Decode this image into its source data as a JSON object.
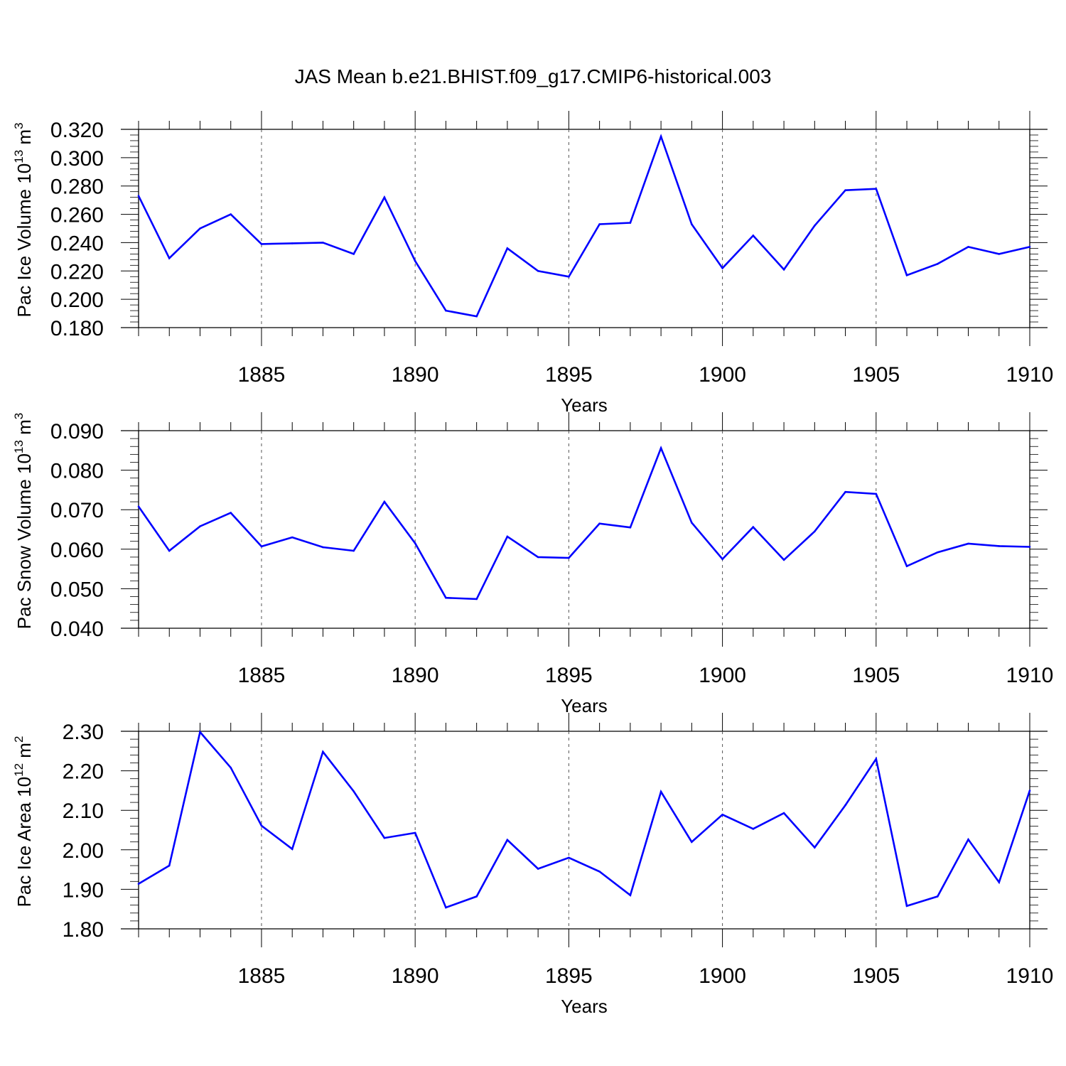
{
  "title": "JAS Mean b.e21.BHIST.f09_g17.CMIP6-historical.003",
  "line_color": "#0000ff",
  "chart_data": [
    {
      "type": "line",
      "xlabel": "Years",
      "ylabel": "Pac Ice Volume 10",
      "ylabel_exp": "13",
      "ylabel_unit": " m",
      "ylabel_unit_exp": "3",
      "xlim": [
        1881,
        1910
      ],
      "ylim": [
        0.18,
        0.32
      ],
      "xticks": [
        1885,
        1890,
        1895,
        1900,
        1905,
        1910
      ],
      "yticks": [
        "0.180",
        "0.200",
        "0.220",
        "0.240",
        "0.260",
        "0.280",
        "0.300",
        "0.320"
      ],
      "x": [
        1881,
        1882,
        1883,
        1884,
        1885,
        1886,
        1887,
        1888,
        1889,
        1890,
        1891,
        1892,
        1893,
        1894,
        1895,
        1896,
        1897,
        1898,
        1899,
        1900,
        1901,
        1902,
        1903,
        1904,
        1905,
        1906,
        1907,
        1908,
        1909,
        1910
      ],
      "values": [
        0.273,
        0.229,
        0.25,
        0.26,
        0.239,
        0.2395,
        0.24,
        0.232,
        0.272,
        0.227,
        0.192,
        0.188,
        0.236,
        0.22,
        0.216,
        0.253,
        0.254,
        0.315,
        0.253,
        0.222,
        0.245,
        0.221,
        0.252,
        0.277,
        0.278,
        0.217,
        0.225,
        0.237,
        0.232,
        0.237
      ]
    },
    {
      "type": "line",
      "xlabel": "Years",
      "ylabel": "Pac Snow Volume 10",
      "ylabel_exp": "13",
      "ylabel_unit": " m",
      "ylabel_unit_exp": "3",
      "xlim": [
        1881,
        1910
      ],
      "ylim": [
        0.04,
        0.09
      ],
      "xticks": [
        1885,
        1890,
        1895,
        1900,
        1905,
        1910
      ],
      "yticks": [
        "0.040",
        "0.050",
        "0.060",
        "0.070",
        "0.080",
        "0.090"
      ],
      "x": [
        1881,
        1882,
        1883,
        1884,
        1885,
        1886,
        1887,
        1888,
        1889,
        1890,
        1891,
        1892,
        1893,
        1894,
        1895,
        1896,
        1897,
        1898,
        1899,
        1900,
        1901,
        1902,
        1903,
        1904,
        1905,
        1906,
        1907,
        1908,
        1909,
        1910
      ],
      "values": [
        0.0708,
        0.0596,
        0.0658,
        0.0692,
        0.0607,
        0.063,
        0.0605,
        0.0596,
        0.072,
        0.0615,
        0.0477,
        0.0474,
        0.0632,
        0.058,
        0.0578,
        0.0665,
        0.0655,
        0.0856,
        0.0667,
        0.0575,
        0.0656,
        0.0573,
        0.0645,
        0.0745,
        0.074,
        0.0557,
        0.0592,
        0.0614,
        0.0608,
        0.0606
      ]
    },
    {
      "type": "line",
      "xlabel": "Years",
      "ylabel": "Pac Ice Area 10",
      "ylabel_exp": "12",
      "ylabel_unit": " m",
      "ylabel_unit_exp": "2",
      "xlim": [
        1881,
        1910
      ],
      "ylim": [
        1.8,
        2.3
      ],
      "xticks": [
        1885,
        1890,
        1895,
        1900,
        1905,
        1910
      ],
      "yticks": [
        "1.80",
        "1.90",
        "2.00",
        "2.10",
        "2.20",
        "2.30"
      ],
      "x": [
        1881,
        1882,
        1883,
        1884,
        1885,
        1886,
        1887,
        1888,
        1889,
        1890,
        1891,
        1892,
        1893,
        1894,
        1895,
        1896,
        1897,
        1898,
        1899,
        1900,
        1901,
        1902,
        1903,
        1904,
        1905,
        1906,
        1907,
        1908,
        1909,
        1910
      ],
      "values": [
        1.914,
        1.96,
        2.298,
        2.208,
        2.061,
        2.002,
        2.248,
        2.148,
        2.03,
        2.043,
        1.854,
        1.882,
        2.025,
        1.952,
        1.98,
        1.945,
        1.885,
        2.147,
        2.02,
        2.089,
        2.053,
        2.093,
        2.006,
        2.113,
        2.23,
        1.858,
        1.882,
        2.026,
        1.918,
        2.15
      ]
    }
  ]
}
